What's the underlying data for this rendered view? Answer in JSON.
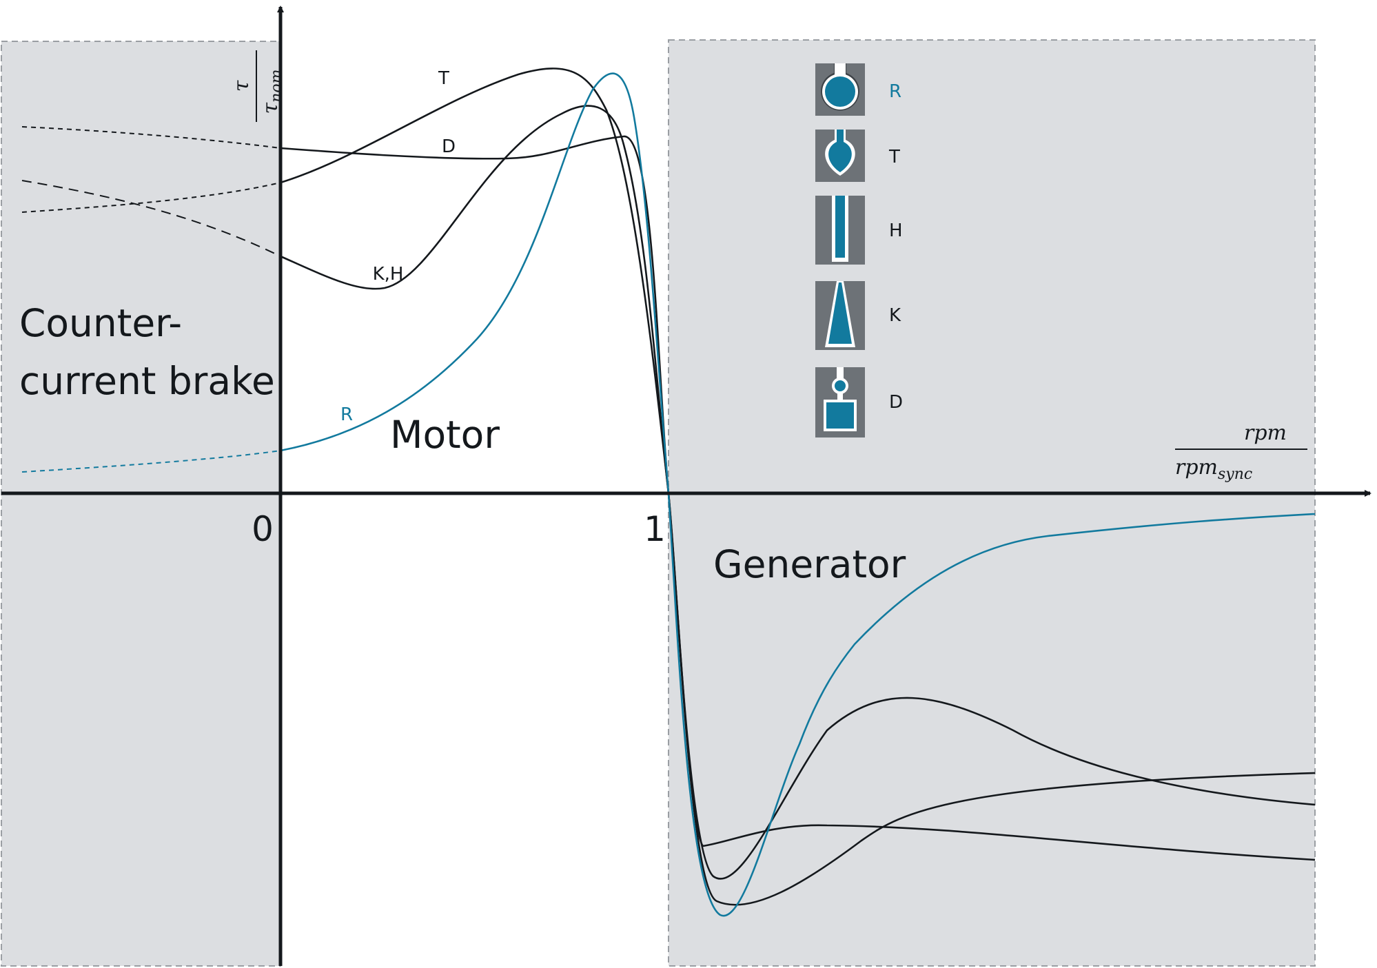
{
  "colors": {
    "accent": "#127a9e",
    "ink": "#14181c",
    "region_fill": "#dcdee1",
    "region_border": "#9a9ea3",
    "icon_bg": "#6d7277",
    "icon_rim": "#3d4247"
  },
  "axes": {
    "y_label_numerator": "τ",
    "y_label_denominator": "τ",
    "y_label_denominator_sub": "nom",
    "x_label_numerator": "rpm",
    "x_label_denominator": "rpm",
    "x_label_denominator_sub": "sync",
    "tick_zero": "0",
    "tick_one": "1"
  },
  "regions": {
    "brake_line1": "Counter-",
    "brake_line2": "current brake",
    "motor": "Motor",
    "generator": "Generator"
  },
  "curve_labels": {
    "T": "T",
    "D": "D",
    "KH": "K,H",
    "R": "R"
  },
  "legend": [
    {
      "label": "R",
      "icon": "round-bar-rotor-icon",
      "color": "accent"
    },
    {
      "label": "T",
      "icon": "drop-bar-rotor-icon",
      "color": "ink"
    },
    {
      "label": "H",
      "icon": "deep-bar-rotor-icon",
      "color": "ink"
    },
    {
      "label": "K",
      "icon": "wedge-bar-rotor-icon",
      "color": "ink"
    },
    {
      "label": "D",
      "icon": "double-cage-rotor-icon",
      "color": "ink"
    }
  ]
}
